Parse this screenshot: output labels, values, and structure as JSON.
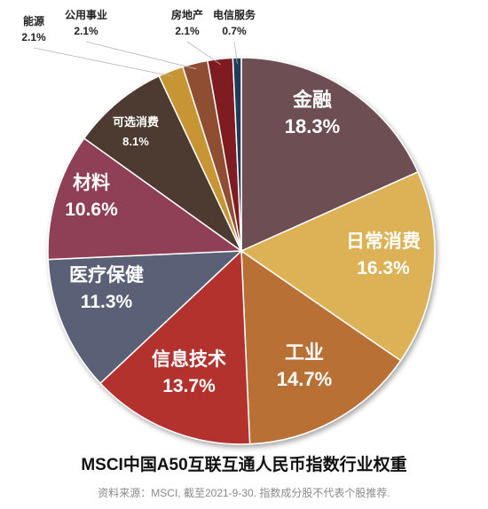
{
  "chart_data": {
    "type": "pie",
    "title": "MSCI中国A50互联互通人民币指数行业权重",
    "source": "资料来源：MSCI, 截至2021-9-30. 指数成分股不代表个股推荐.",
    "slices": [
      {
        "label": "金融",
        "value": 18.3,
        "value_text": "18.3%",
        "color": "#6d5052"
      },
      {
        "label": "日常消费",
        "value": 16.3,
        "value_text": "16.3%",
        "color": "#ddb257"
      },
      {
        "label": "工业",
        "value": 14.7,
        "value_text": "14.7%",
        "color": "#b86f35"
      },
      {
        "label": "信息技术",
        "value": 13.7,
        "value_text": "13.7%",
        "color": "#b3322f"
      },
      {
        "label": "医疗保健",
        "value": 11.3,
        "value_text": "11.3%",
        "color": "#5a6176"
      },
      {
        "label": "材料",
        "value": 10.6,
        "value_text": "10.6%",
        "color": "#903f56"
      },
      {
        "label": "可选消费",
        "value": 8.1,
        "value_text": "8.1%",
        "color": "#4e3a32"
      },
      {
        "label": "能源",
        "value": 2.1,
        "value_text": "2.1%",
        "color": "#c89534"
      },
      {
        "label": "公用事业",
        "value": 2.1,
        "value_text": "2.1%",
        "color": "#8f4e30"
      },
      {
        "label": "房地产",
        "value": 2.1,
        "value_text": "2.1%",
        "color": "#7e1f20"
      },
      {
        "label": "电信服务",
        "value": 0.7,
        "value_text": "0.7%",
        "color": "#243a5a"
      }
    ]
  }
}
